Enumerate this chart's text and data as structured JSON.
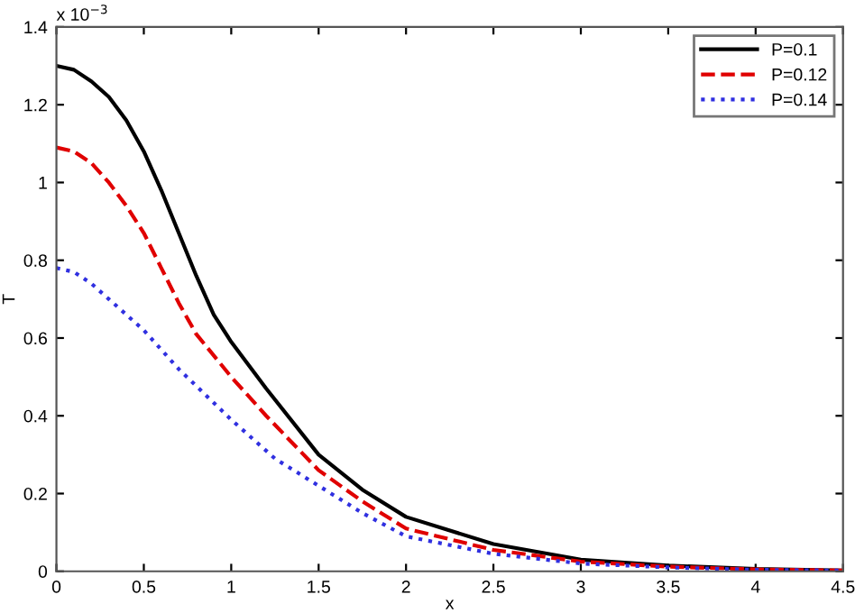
{
  "chart_data": {
    "type": "line",
    "xlabel": "x",
    "ylabel": "T",
    "annotations": [
      "x 10$^{−3}$"
    ],
    "xlim": [
      0,
      4.5
    ],
    "ylim": [
      0,
      1.4
    ],
    "xticks": [
      0,
      0.5,
      1,
      1.5,
      2,
      2.5,
      3,
      3.5,
      4,
      4.5
    ],
    "yticks": [
      0,
      0.2,
      0.4,
      0.6,
      0.8,
      1,
      1.2,
      1.4
    ],
    "grid": false,
    "legend": "top right",
    "marker": "none",
    "series": [
      {
        "name": "P=0.1",
        "color": "#000000",
        "line_style": "solid",
        "x": [
          0,
          0.1,
          0.2,
          0.3,
          0.4,
          0.5,
          0.6,
          0.7,
          0.8,
          0.9,
          1.0,
          1.2,
          1.5,
          1.75,
          2,
          2.5,
          3,
          3.5,
          4,
          4.5
        ],
        "values": [
          1.3,
          1.29,
          1.26,
          1.22,
          1.16,
          1.08,
          0.98,
          0.87,
          0.76,
          0.66,
          0.59,
          0.47,
          0.3,
          0.21,
          0.14,
          0.07,
          0.03,
          0.015,
          0.006,
          0.002
        ]
      },
      {
        "name": "P=0.12",
        "color": "#e00000",
        "line_style": "dashed",
        "x": [
          0,
          0.1,
          0.2,
          0.3,
          0.4,
          0.5,
          0.6,
          0.7,
          0.8,
          1.0,
          1.2,
          1.5,
          1.75,
          2,
          2.5,
          3,
          3.5,
          4,
          4.5
        ],
        "values": [
          1.09,
          1.08,
          1.05,
          1.0,
          0.94,
          0.87,
          0.78,
          0.69,
          0.61,
          0.5,
          0.4,
          0.26,
          0.18,
          0.11,
          0.055,
          0.025,
          0.012,
          0.005,
          0.002
        ]
      },
      {
        "name": "P=0.14",
        "color": "#3030e0",
        "line_style": "dotted",
        "x": [
          0,
          0.1,
          0.2,
          0.3,
          0.5,
          0.7,
          1.0,
          1.25,
          1.5,
          1.75,
          2,
          2.5,
          3,
          3.5,
          4,
          4.5
        ],
        "values": [
          0.78,
          0.77,
          0.74,
          0.7,
          0.62,
          0.52,
          0.39,
          0.29,
          0.22,
          0.15,
          0.09,
          0.045,
          0.02,
          0.01,
          0.004,
          0.002
        ]
      }
    ]
  }
}
